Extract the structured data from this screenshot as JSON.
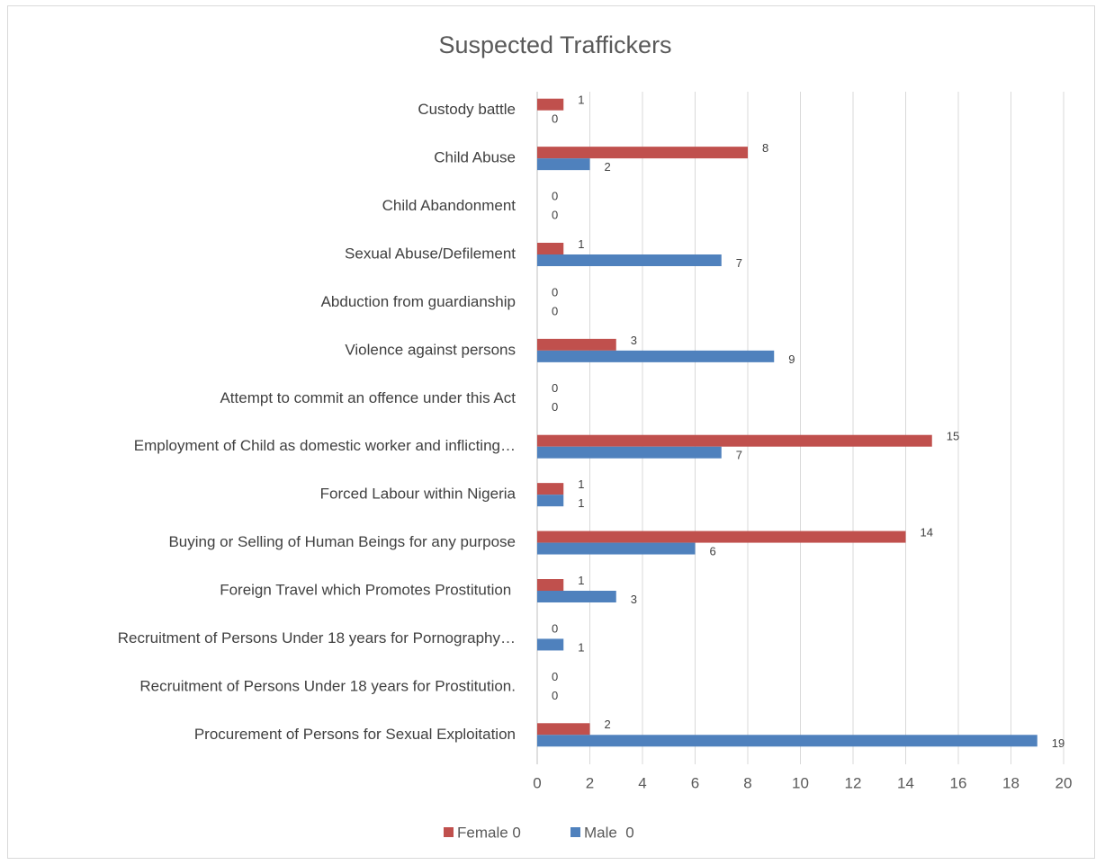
{
  "chart_data": {
    "type": "hbar",
    "title": "Suspected Traffickers",
    "categories": [
      "Custody battle",
      "Child Abuse",
      "Child Abandonment",
      "Sexual Abuse/Defilement",
      "Abduction from guardianship",
      "Violence against persons",
      "Attempt to commit an offence under this Act",
      "Employment of Child as domestic worker and inflicting…",
      "Forced Labour within Nigeria",
      "Buying or Selling of Human Beings for any purpose",
      "Foreign Travel which Promotes Prostitution ",
      "Recruitment of Persons Under 18 years for Pornography…",
      "Recruitment of Persons Under 18 years for Prostitution.",
      "Procurement of Persons for Sexual Exploitation"
    ],
    "series": [
      {
        "name": "Female 0",
        "color": "#c0504d",
        "values": [
          1,
          8,
          0,
          1,
          0,
          3,
          0,
          15,
          1,
          14,
          1,
          0,
          0,
          2
        ]
      },
      {
        "name": "Male  0",
        "color": "#4f81bd",
        "values": [
          0,
          2,
          0,
          7,
          0,
          9,
          0,
          7,
          1,
          6,
          3,
          1,
          0,
          19
        ]
      }
    ],
    "xlim": [
      0,
      20
    ],
    "xticks": [
      0,
      2,
      4,
      6,
      8,
      10,
      12,
      14,
      16,
      18,
      20
    ],
    "grid": true,
    "legend": "bottom"
  }
}
